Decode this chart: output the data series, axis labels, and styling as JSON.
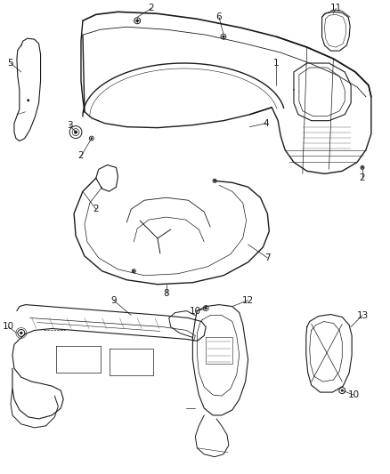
{
  "fig_width": 4.38,
  "fig_height": 5.33,
  "dpi": 100,
  "bg": "#ffffff",
  "lc": "#1a1a1a",
  "lc2": "#555555",
  "fs": 7.5
}
